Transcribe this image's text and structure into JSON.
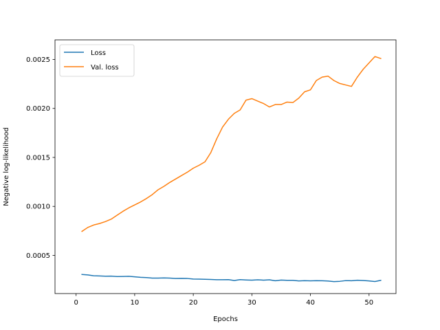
{
  "chart_data": {
    "type": "line",
    "title": "",
    "xlabel": "Epochs",
    "ylabel": "Negative log-likelihood",
    "xlim": [
      -3.6,
      54.6
    ],
    "ylim": [
      0.00011,
      0.0027
    ],
    "xticks": [
      0,
      10,
      20,
      30,
      40,
      50
    ],
    "yticks": [
      0.0005,
      0.001,
      0.0015,
      0.002,
      0.0025
    ],
    "ytick_labels": [
      "0.0005",
      "0.0010",
      "0.0015",
      "0.0020",
      "0.0025"
    ],
    "grid": false,
    "legend": "top-left",
    "x": [
      1,
      2,
      3,
      4,
      5,
      6,
      7,
      8,
      9,
      10,
      11,
      12,
      13,
      14,
      15,
      16,
      17,
      18,
      19,
      20,
      21,
      22,
      23,
      24,
      25,
      26,
      27,
      28,
      29,
      30,
      31,
      32,
      33,
      34,
      35,
      36,
      37,
      38,
      39,
      40,
      41,
      42,
      43,
      44,
      45,
      46,
      47,
      48,
      49,
      50,
      51,
      52
    ],
    "series": [
      {
        "name": "Loss",
        "color": "#1f77b4",
        "values": [
          0.000305,
          0.0003,
          0.000292,
          0.00029,
          0.000287,
          0.000288,
          0.000284,
          0.000285,
          0.000286,
          0.000281,
          0.000276,
          0.000273,
          0.000268,
          0.000268,
          0.00027,
          0.000268,
          0.000264,
          0.000265,
          0.000264,
          0.000258,
          0.000257,
          0.000256,
          0.000254,
          0.000251,
          0.000251,
          0.000252,
          0.000243,
          0.000252,
          0.000249,
          0.000247,
          0.00025,
          0.000247,
          0.00025,
          0.000241,
          0.000248,
          0.000245,
          0.000245,
          0.000239,
          0.000242,
          0.00024,
          0.000242,
          0.000241,
          0.000238,
          0.000232,
          0.000235,
          0.000242,
          0.000241,
          0.000246,
          0.000243,
          0.000239,
          0.000233,
          0.000245
        ]
      },
      {
        "name": "Val. loss",
        "color": "#ff7f0e",
        "values": [
          0.000745,
          0.000785,
          0.00081,
          0.000825,
          0.000845,
          0.00087,
          0.00091,
          0.00095,
          0.000985,
          0.001015,
          0.001045,
          0.00108,
          0.00112,
          0.00117,
          0.001205,
          0.001245,
          0.00128,
          0.001315,
          0.00135,
          0.00139,
          0.00142,
          0.001455,
          0.00155,
          0.00169,
          0.00181,
          0.00189,
          0.00195,
          0.001985,
          0.002085,
          0.0021,
          0.002075,
          0.00205,
          0.002015,
          0.00204,
          0.00204,
          0.002065,
          0.00206,
          0.002105,
          0.00217,
          0.00219,
          0.002285,
          0.00232,
          0.00233,
          0.002285,
          0.002255,
          0.00224,
          0.002225,
          0.00232,
          0.0024,
          0.002465,
          0.00253,
          0.00251
        ]
      }
    ]
  }
}
